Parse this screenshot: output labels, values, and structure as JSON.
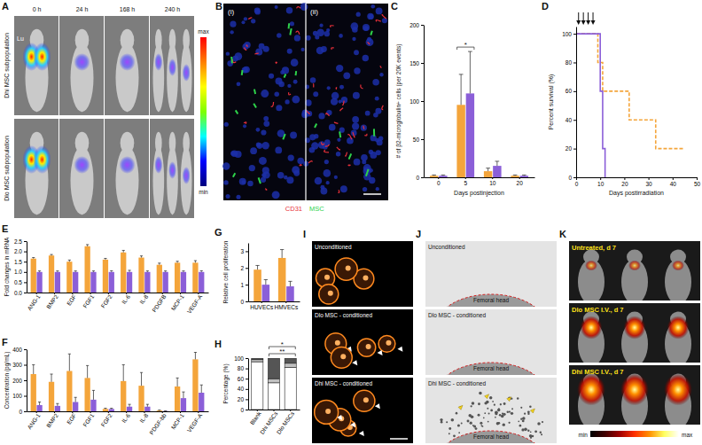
{
  "panel_labels": [
    "A",
    "B",
    "C",
    "D",
    "E",
    "F",
    "G",
    "H",
    "I",
    "J",
    "K"
  ],
  "images": {
    "A": {
      "columns": [
        "0 h",
        "24 h",
        "168 h",
        "240 h"
      ],
      "rows": [
        "Dhi MSC subpopulation",
        "Dlo MSC subpopulation"
      ],
      "organ_label": "Lu",
      "colorbar": [
        "max",
        "min"
      ]
    },
    "B": {
      "subpanels": [
        "(i)",
        "(ii)"
      ],
      "stains": [
        {
          "text": "CD31",
          "color": "#e8303a"
        },
        {
          "text": "MSC",
          "color": "#2ed24a"
        }
      ]
    },
    "I": {
      "rows": [
        "Unconditioned",
        "Dlo MSC - conditioned",
        "Dhi MSC - conditioned"
      ]
    },
    "J": {
      "rows": [
        "Unconditioned",
        "Dlo MSC - conditioned",
        "Dhi MSC - conditioned"
      ],
      "landmark": "Femoral head"
    },
    "K": {
      "rows": [
        "Untreated, d 7",
        "Dlo MSC I.V., d 7",
        "Dhi MSC I.V., d 7"
      ],
      "colorbar": [
        "min",
        "max"
      ]
    }
  },
  "chart_data": [
    {
      "type": "bar",
      "categories": [
        "0",
        "5",
        "10",
        "20"
      ],
      "xlabel": "Days postinjection",
      "ylabel": "# of β2-microglobulin+ cells (per 20K events)",
      "ylim": [
        0,
        200
      ],
      "yticks": [
        0,
        50,
        100,
        150,
        200
      ],
      "series": [
        {
          "color": "#f4a53b",
          "values": [
            2,
            95,
            8,
            2
          ],
          "errors": [
            1,
            40,
            4,
            1
          ]
        },
        {
          "color": "#8b5fd8",
          "values": [
            2,
            110,
            15,
            2
          ],
          "errors": [
            1,
            55,
            6,
            1
          ]
        }
      ],
      "annotations": [
        {
          "text": "*",
          "categories": [
            1
          ]
        }
      ]
    },
    {
      "type": "step",
      "xlabel": "Days postirradiation",
      "ylabel": "Percent survival (%)",
      "xlim": [
        0,
        50
      ],
      "xticks": [
        0,
        10,
        20,
        30,
        40,
        50
      ],
      "ylim": [
        0,
        105
      ],
      "yticks": [
        0,
        20,
        40,
        60,
        80,
        100
      ],
      "injection_days": [
        1,
        3,
        5,
        7
      ],
      "series": [
        {
          "color": "#f4a53b",
          "line_style": "dashed",
          "x": [
            0,
            9,
            11,
            22,
            33,
            45
          ],
          "values": [
            100,
            80,
            60,
            40,
            20,
            20
          ]
        },
        {
          "color": "#8b5fd8",
          "line_style": "solid",
          "x": [
            0,
            10,
            11,
            12
          ],
          "values": [
            100,
            60,
            20,
            0
          ]
        }
      ]
    },
    {
      "type": "bar",
      "categories": [
        "ANG-1",
        "BMP2",
        "EGF",
        "FGF1",
        "FGF2",
        "IL-6",
        "IL-8",
        "PDGFB",
        "MCP-1",
        "VEGF-A"
      ],
      "ylabel": "Fold changes in mRNA",
      "ylim": [
        0,
        2.5
      ],
      "yticks": [
        {
          "value": 0,
          "label": "0.0"
        },
        0.5,
        {
          "value": 1,
          "label": "1.0"
        },
        1.5,
        {
          "value": 2,
          "label": "2.0"
        },
        2.5
      ],
      "series": [
        {
          "color": "#f4a53b",
          "values": [
            1.65,
            1.8,
            1.5,
            2.25,
            1.6,
            1.95,
            1.7,
            1.35,
            1.45,
            1.45
          ],
          "errors": [
            0.05,
            0.05,
            0.08,
            0.08,
            0.06,
            0.1,
            0.08,
            0.08,
            0.07,
            0.1
          ]
        },
        {
          "color": "#8b5fd8",
          "values": [
            1,
            1,
            1,
            1,
            1,
            1,
            1,
            1,
            1,
            1
          ],
          "errors": [
            0.05,
            0.05,
            0.05,
            0.05,
            0.06,
            0.08,
            0.05,
            0.05,
            0.05,
            0.06
          ]
        }
      ]
    },
    {
      "type": "bar",
      "categories": [
        "ANG-1",
        "BMP2",
        "EGF",
        "FGF1",
        "FGF2",
        "IL-6",
        "IL-8",
        "PDGF-bb",
        "MCP-1",
        "VEGF-A"
      ],
      "ylabel": "Concentration (pg/mL)",
      "ylim": [
        0,
        400
      ],
      "yticks": [
        0,
        100,
        200,
        300,
        400
      ],
      "series": [
        {
          "color": "#f4a53b",
          "values": [
            240,
            190,
            260,
            215,
            15,
            195,
            165,
            5,
            160,
            335
          ],
          "errors": [
            60,
            50,
            110,
            80,
            5,
            105,
            85,
            3,
            55,
            45
          ]
        },
        {
          "color": "#8b5fd8",
          "values": [
            40,
            35,
            60,
            75,
            15,
            30,
            30,
            2,
            85,
            120
          ],
          "errors": [
            20,
            15,
            30,
            60,
            5,
            15,
            15,
            1,
            40,
            50
          ]
        }
      ]
    },
    {
      "type": "bar",
      "categories": [
        "HUVECs",
        "HMVECs"
      ],
      "ylabel": "Relative cell proliferation",
      "ylim": [
        0,
        3.5
      ],
      "yticks": [
        0,
        1,
        2,
        3
      ],
      "series": [
        {
          "color": "#f4a53b",
          "values": [
            1.9,
            2.6
          ],
          "errors": [
            0.25,
            0.5
          ]
        },
        {
          "color": "#8b5fd8",
          "values": [
            1.0,
            0.9
          ],
          "errors": [
            0.3,
            0.3
          ]
        }
      ]
    },
    {
      "type": "bar",
      "stacked": true,
      "categories": [
        "Blank",
        "Dhi MSCs",
        "Dlo MSCs"
      ],
      "ylabel": "Percentage (%)",
      "ylim": [
        0,
        100
      ],
      "yticks": [
        0,
        20,
        40,
        60,
        80,
        100
      ],
      "series": [
        {
          "color": "#ffffff",
          "values": [
            93,
            52,
            82
          ],
          "errors": [
            1,
            5,
            3
          ]
        },
        {
          "color": "#c0c0c0",
          "values": [
            4,
            8,
            8
          ]
        },
        {
          "color": "#555555",
          "values": [
            3,
            40,
            10
          ]
        }
      ],
      "annotations": [
        {
          "text": "**",
          "categories": [
            1,
            2
          ]
        },
        {
          "text": "*",
          "categories": [
            1,
            2
          ]
        }
      ]
    }
  ]
}
